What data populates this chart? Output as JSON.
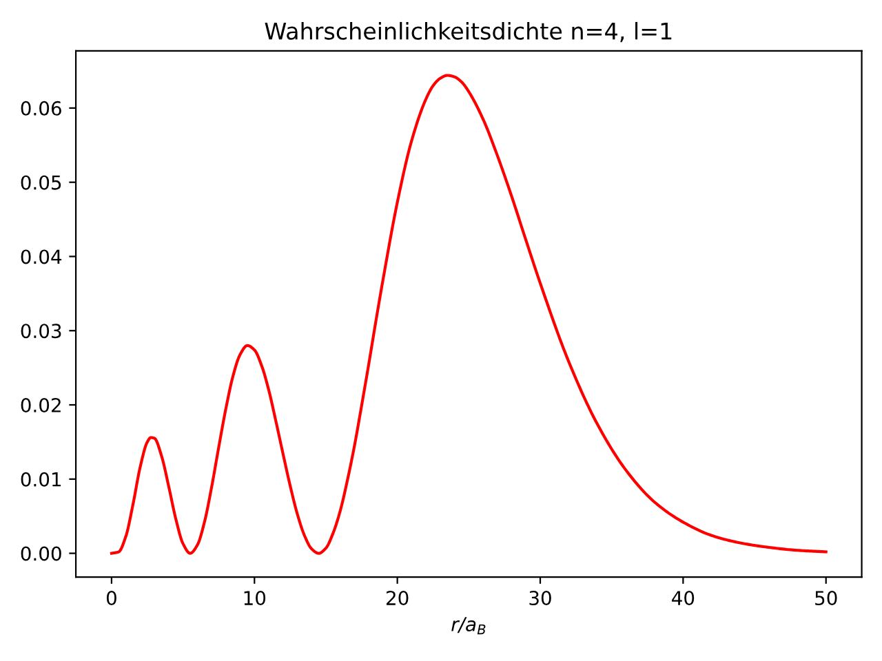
{
  "chart_data": {
    "type": "line",
    "title": "Wahrscheinlichkeitsdichte n=4, l=1",
    "xlabel": "r/a$_{B}$",
    "x": [
      0,
      0.5,
      1,
      1.5,
      2,
      2.5,
      2.75,
      3,
      3.5,
      4,
      4.5,
      5,
      5.5,
      6,
      6.5,
      7,
      7.5,
      8,
      8.5,
      9,
      9.5,
      10,
      10.5,
      11,
      11.5,
      12,
      12.5,
      13,
      13.5,
      14,
      14.5,
      15,
      15.5,
      16,
      16.5,
      17,
      17.5,
      18,
      18.5,
      19,
      20,
      21,
      22,
      22.5,
      23,
      23.5,
      24,
      24.5,
      25,
      26,
      27,
      28,
      29,
      30,
      32,
      34,
      36,
      38,
      40,
      42,
      44,
      46,
      48,
      50
    ],
    "series": [
      {
        "color": "#ff0000",
        "values": [
          0,
          0.0002,
          0.0023,
          0.0066,
          0.0116,
          0.015,
          0.0156,
          0.0155,
          0.0131,
          0.009,
          0.0046,
          0.0013,
          0,
          0.0011,
          0.0042,
          0.0089,
          0.0143,
          0.0195,
          0.0239,
          0.0268,
          0.028,
          0.0274,
          0.0253,
          0.022,
          0.0178,
          0.0134,
          0.0091,
          0.0053,
          0.0024,
          0.0006,
          0,
          0.0007,
          0.0027,
          0.0057,
          0.0098,
          0.0145,
          0.0199,
          0.0255,
          0.0313,
          0.0369,
          0.0473,
          0.0556,
          0.0612,
          0.063,
          0.064,
          0.0644,
          0.0642,
          0.0635,
          0.0622,
          0.0585,
          0.0536,
          0.0481,
          0.0422,
          0.0364,
          0.0258,
          0.0174,
          0.0112,
          0.0069,
          0.0042,
          0.0024,
          0.0014,
          0.0008,
          0.0004,
          0.0002
        ]
      }
    ],
    "xlim": [
      -2.5,
      52.5
    ],
    "ylim": [
      -0.0032,
      0.0677
    ],
    "xticks": [
      0,
      10,
      20,
      30,
      40,
      50
    ],
    "yticks": [
      {
        "value": 0,
        "label": "0.00"
      },
      {
        "value": 0.01,
        "label": "0.01"
      },
      {
        "value": 0.02,
        "label": "0.02"
      },
      {
        "value": 0.03,
        "label": "0.03"
      },
      {
        "value": 0.04,
        "label": "0.04"
      },
      {
        "value": 0.05,
        "label": "0.05"
      },
      {
        "value": 0.06,
        "label": "0.06"
      }
    ],
    "line_style": "solid"
  }
}
